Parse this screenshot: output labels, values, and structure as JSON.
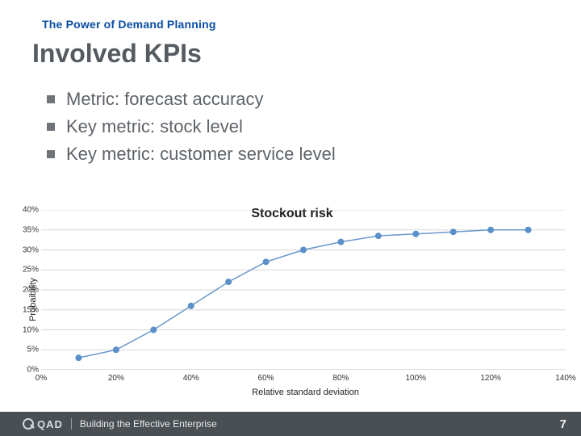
{
  "header": {
    "subtitle": "The Power of Demand Planning",
    "title": "Involved KPIs"
  },
  "bullets": [
    "Metric: forecast accuracy",
    "Key metric: stock level",
    "Key metric: customer service level"
  ],
  "chart": {
    "type": "line",
    "title": "Stockout risk",
    "ylabel": "Probaibility",
    "xlabel": "Relative standard deviation",
    "ylim": [
      0,
      40
    ],
    "ytick_step": 5,
    "xlim": [
      0,
      140
    ],
    "xtick_step": 20,
    "series": {
      "x": [
        10,
        20,
        30,
        40,
        50,
        60,
        70,
        80,
        90,
        100,
        110,
        120,
        130
      ],
      "y": [
        3,
        5,
        10,
        16,
        22,
        27,
        30,
        32,
        33.5,
        34,
        34.5,
        35,
        35
      ],
      "line_color": "#6a98ca",
      "line_width": 1.5,
      "marker_color": "#5b8fc8",
      "marker_size": 4
    },
    "grid_color": "#d7d7d7",
    "axis_color": "#bfbfbf",
    "background_color": "#ffffff",
    "tick_fontsize": 10,
    "label_fontsize": 11,
    "title_fontsize": 16
  },
  "footer": {
    "brand": "QAD",
    "divider": "|",
    "tagline": "Building the Effective Enterprise",
    "page_number": "7"
  },
  "colors": {
    "subtitle_color": "#0b4da2",
    "title_color": "#555b60",
    "bullet_text_color": "#5e6368",
    "bullet_marker_color": "#707478",
    "footer_bg": "#4a4f53"
  }
}
